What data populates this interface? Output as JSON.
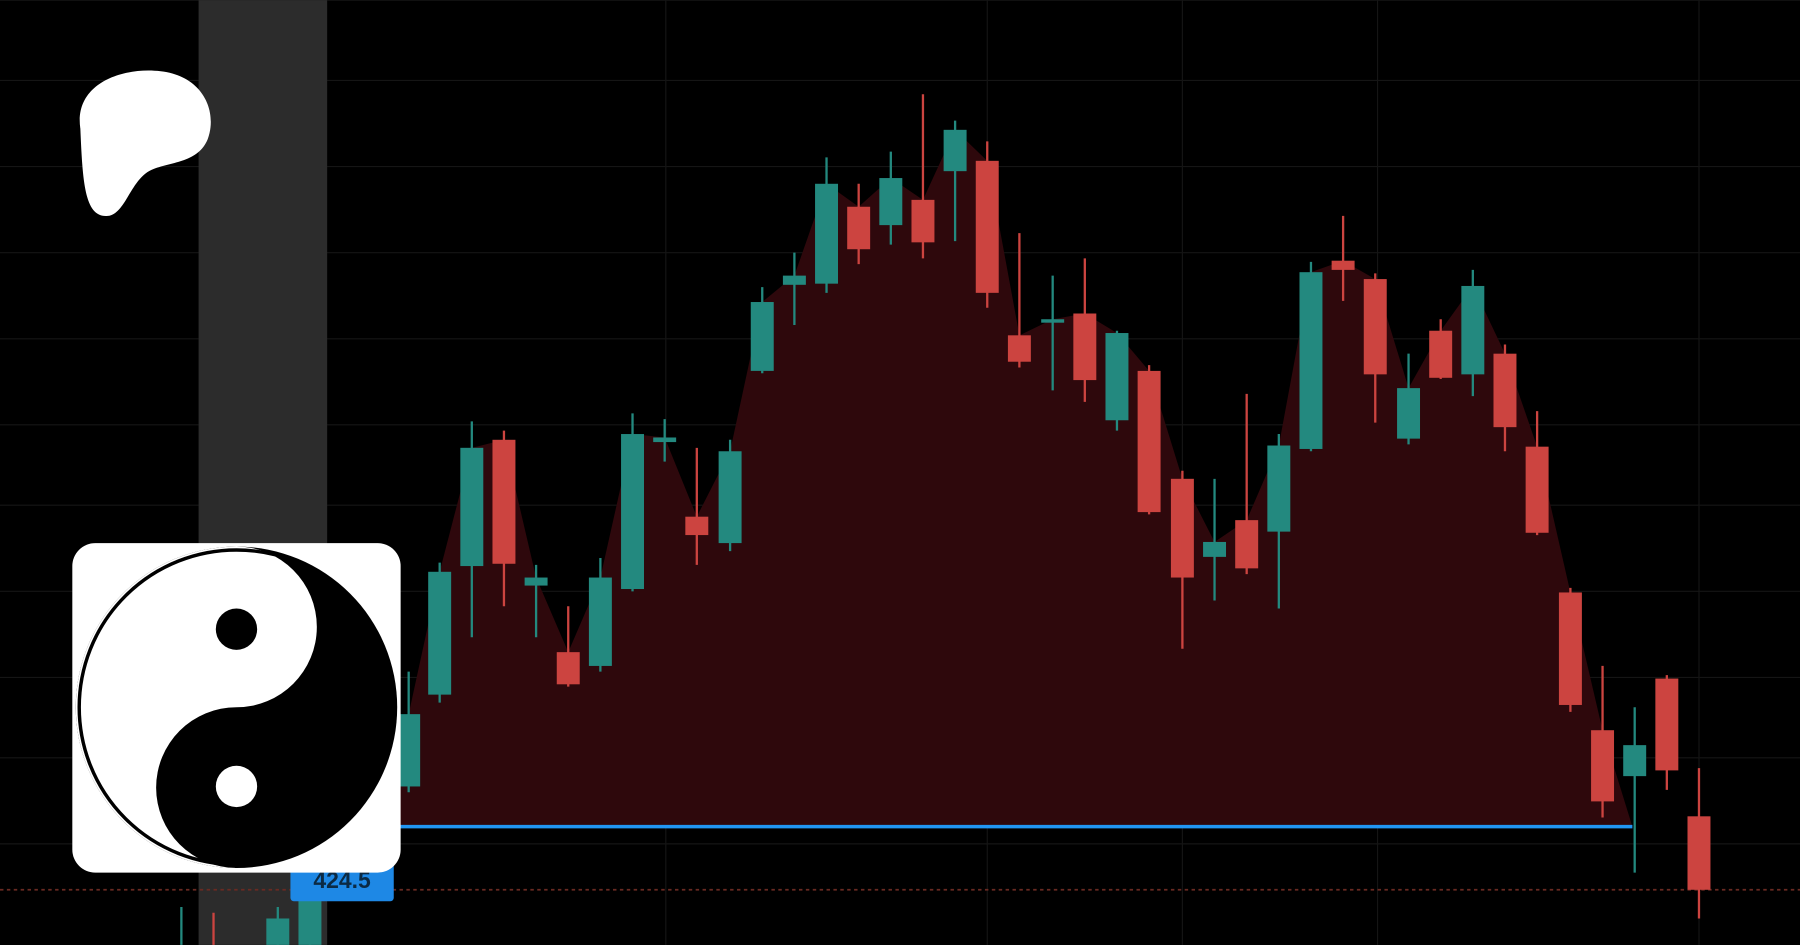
{
  "price_label": "424.5"
}
